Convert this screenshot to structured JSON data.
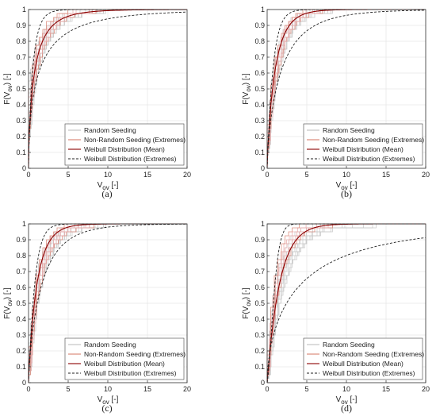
{
  "chart_data": [
    {
      "panel": "(a)",
      "type": "line",
      "xlabel": "V",
      "xlabel_sub": "ov",
      "xlabel_unit": " [-]",
      "ylabel": "F(V",
      "ylabel_sub": "ov",
      "ylabel_unit": ") [-]",
      "xlim": [
        0,
        20
      ],
      "ylim": [
        0,
        1
      ],
      "xticks": [
        0,
        5,
        10,
        15,
        20
      ],
      "yticks": [
        0,
        0.1,
        0.2,
        0.3,
        0.4,
        0.5,
        0.6,
        0.7,
        0.8,
        0.9,
        1
      ],
      "grid": true,
      "legend_position": "bottom-right",
      "series": [
        {
          "name": "Random Seeding",
          "color": "#c8c8c8",
          "style": "steps",
          "band": [
            [
              0,
              0.55,
              0.2
            ],
            [
              0.5,
              0.7,
              0.45
            ],
            [
              1,
              0.78,
              0.6
            ],
            [
              2,
              0.88,
              0.75
            ],
            [
              3,
              0.93,
              0.84
            ],
            [
              4,
              0.96,
              0.9
            ],
            [
              5,
              0.98,
              0.93
            ],
            [
              7,
              0.99,
              0.97
            ],
            [
              10,
              1,
              0.99
            ],
            [
              20,
              1,
              1
            ]
          ]
        },
        {
          "name": "Non-Random Seeding (Extremes)",
          "color": "#e8a8a8",
          "style": "steps",
          "band": [
            [
              0,
              0.5,
              0.25
            ],
            [
              0.5,
              0.68,
              0.48
            ],
            [
              1,
              0.8,
              0.62
            ],
            [
              2,
              0.9,
              0.78
            ],
            [
              3,
              0.95,
              0.86
            ],
            [
              4,
              0.98,
              0.92
            ],
            [
              5,
              0.99,
              0.95
            ],
            [
              6,
              1,
              0.97
            ],
            [
              10,
              1,
              1
            ],
            [
              20,
              1,
              1
            ]
          ]
        },
        {
          "name": "Weibull Distribution (Mean)",
          "color": "#8b0000",
          "style": "solid",
          "k": 0.65,
          "lambda": 0.85
        },
        {
          "name": "Weibull Distribution (Extremes)",
          "color": "#222222",
          "style": "dashed",
          "ext": [
            {
              "k": 0.85,
              "lambda": 0.55
            },
            {
              "k": 0.55,
              "lambda": 1.5
            }
          ]
        }
      ]
    },
    {
      "panel": "(b)",
      "type": "line",
      "xlabel": "V",
      "xlabel_sub": "ov",
      "xlabel_unit": " [-]",
      "ylabel": "F(V",
      "ylabel_sub": "ov",
      "ylabel_unit": ") [-]",
      "xlim": [
        0,
        20
      ],
      "ylim": [
        0,
        1
      ],
      "xticks": [
        0,
        5,
        10,
        15,
        20
      ],
      "yticks": [
        0,
        0.1,
        0.2,
        0.3,
        0.4,
        0.5,
        0.6,
        0.7,
        0.8,
        0.9,
        1
      ],
      "grid": true,
      "legend_position": "bottom-right",
      "series": [
        {
          "name": "Random Seeding",
          "color": "#c8c8c8",
          "style": "steps",
          "band": [
            [
              0,
              0.3,
              0.1
            ],
            [
              0.5,
              0.55,
              0.35
            ],
            [
              1,
              0.72,
              0.52
            ],
            [
              2,
              0.87,
              0.73
            ],
            [
              3,
              0.94,
              0.85
            ],
            [
              4,
              0.97,
              0.91
            ],
            [
              5,
              0.99,
              0.95
            ],
            [
              7,
              1,
              0.98
            ],
            [
              10,
              1,
              1
            ],
            [
              20,
              1,
              1
            ]
          ]
        },
        {
          "name": "Non-Random Seeding (Extremes)",
          "color": "#e8a8a8",
          "style": "steps",
          "band": [
            [
              0,
              0.28,
              0.12
            ],
            [
              0.5,
              0.55,
              0.38
            ],
            [
              1,
              0.73,
              0.55
            ],
            [
              2,
              0.89,
              0.76
            ],
            [
              3,
              0.95,
              0.87
            ],
            [
              4,
              0.98,
              0.93
            ],
            [
              5,
              1,
              0.96
            ],
            [
              7,
              1,
              0.99
            ],
            [
              10,
              1,
              1
            ],
            [
              20,
              1,
              1
            ]
          ]
        },
        {
          "name": "Weibull Distribution (Mean)",
          "color": "#8b0000",
          "style": "solid",
          "k": 0.85,
          "lambda": 1.05
        },
        {
          "name": "Weibull Distribution (Extremes)",
          "color": "#222222",
          "style": "dashed",
          "ext": [
            {
              "k": 1.0,
              "lambda": 0.75
            },
            {
              "k": 0.72,
              "lambda": 1.9
            }
          ]
        }
      ]
    },
    {
      "panel": "(c)",
      "type": "line",
      "xlabel": "V",
      "xlabel_sub": "ov",
      "xlabel_unit": " [-]",
      "ylabel": "F(V",
      "ylabel_sub": "ov",
      "ylabel_unit": ") [-]",
      "xlim": [
        0,
        20
      ],
      "ylim": [
        0,
        1
      ],
      "xticks": [
        0,
        5,
        10,
        15,
        20
      ],
      "yticks": [
        0,
        0.1,
        0.2,
        0.3,
        0.4,
        0.5,
        0.6,
        0.7,
        0.8,
        0.9,
        1
      ],
      "grid": true,
      "legend_position": "bottom-right",
      "series": [
        {
          "name": "Random Seeding",
          "color": "#c8c8c8",
          "style": "steps",
          "band": [
            [
              0,
              0.25,
              0.05
            ],
            [
              0.5,
              0.5,
              0.3
            ],
            [
              1,
              0.7,
              0.5
            ],
            [
              2,
              0.86,
              0.7
            ],
            [
              3,
              0.93,
              0.82
            ],
            [
              4,
              0.97,
              0.89
            ],
            [
              5,
              0.98,
              0.93
            ],
            [
              7,
              1,
              0.97
            ],
            [
              10,
              1,
              0.99
            ],
            [
              20,
              1,
              1
            ]
          ]
        },
        {
          "name": "Non-Random Seeding (Extremes)",
          "color": "#e8a8a8",
          "style": "steps",
          "band": [
            [
              0,
              0.22,
              0.05
            ],
            [
              0.5,
              0.5,
              0.32
            ],
            [
              1,
              0.72,
              0.52
            ],
            [
              2,
              0.88,
              0.74
            ],
            [
              3,
              0.95,
              0.85
            ],
            [
              4,
              0.98,
              0.91
            ],
            [
              5,
              1,
              0.95
            ],
            [
              7,
              1,
              0.98
            ],
            [
              10,
              1,
              1
            ],
            [
              20,
              1,
              1
            ]
          ]
        },
        {
          "name": "Weibull Distribution (Mean)",
          "color": "#8b0000",
          "style": "solid",
          "k": 0.9,
          "lambda": 1.1
        },
        {
          "name": "Weibull Distribution (Extremes)",
          "color": "#222222",
          "style": "dashed",
          "ext": [
            {
              "k": 1.05,
              "lambda": 0.8
            },
            {
              "k": 0.78,
              "lambda": 1.75
            }
          ]
        }
      ]
    },
    {
      "panel": "(d)",
      "type": "line",
      "xlabel": "V",
      "xlabel_sub": "ov",
      "xlabel_unit": " [-]",
      "ylabel": "F(V",
      "ylabel_sub": "ov",
      "ylabel_unit": ") [-]",
      "xlim": [
        0,
        20
      ],
      "ylim": [
        0,
        1
      ],
      "xticks": [
        0,
        5,
        10,
        15,
        20
      ],
      "yticks": [
        0,
        0.1,
        0.2,
        0.3,
        0.4,
        0.5,
        0.6,
        0.7,
        0.8,
        0.9,
        1
      ],
      "grid": true,
      "legend_position": "bottom-right",
      "series": [
        {
          "name": "Random Seeding",
          "color": "#c8c8c8",
          "style": "steps",
          "band": [
            [
              0,
              0.2,
              0.02
            ],
            [
              0.5,
              0.45,
              0.2
            ],
            [
              1,
              0.65,
              0.38
            ],
            [
              2,
              0.83,
              0.6
            ],
            [
              3,
              0.92,
              0.74
            ],
            [
              4,
              0.96,
              0.83
            ],
            [
              5,
              0.98,
              0.89
            ],
            [
              7,
              1,
              0.95
            ],
            [
              10,
              1,
              0.98
            ],
            [
              20,
              1,
              1
            ]
          ]
        },
        {
          "name": "Non-Random Seeding (Extremes)",
          "color": "#e8a8a8",
          "style": "steps",
          "band": [
            [
              0,
              0.2,
              0.05
            ],
            [
              0.5,
              0.5,
              0.3
            ],
            [
              1,
              0.72,
              0.5
            ],
            [
              2,
              0.9,
              0.72
            ],
            [
              3,
              0.96,
              0.84
            ],
            [
              4,
              0.99,
              0.91
            ],
            [
              5,
              1,
              0.95
            ],
            [
              7,
              1,
              0.98
            ],
            [
              10,
              1,
              1
            ],
            [
              20,
              1,
              1
            ]
          ]
        },
        {
          "name": "Weibull Distribution (Mean)",
          "color": "#8b0000",
          "style": "solid",
          "k": 1.0,
          "lambda": 1.6
        },
        {
          "name": "Weibull Distribution (Extremes)",
          "color": "#222222",
          "style": "dashed",
          "ext": [
            {
              "k": 1.5,
              "lambda": 1.0
            },
            {
              "k": 0.6,
              "lambda": 4.5
            }
          ]
        }
      ]
    }
  ]
}
